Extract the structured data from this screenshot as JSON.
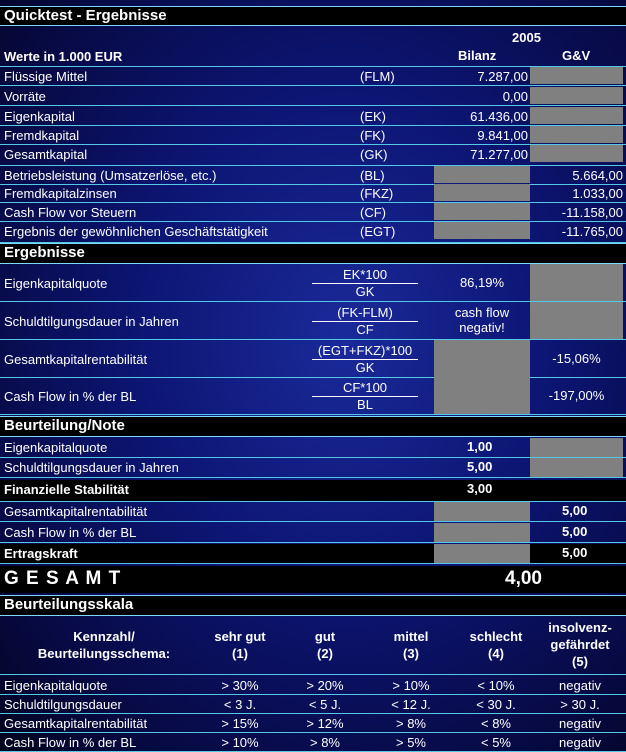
{
  "title": "Quicktest - Ergebnisse",
  "year": "2005",
  "unit_label": "Werte in 1.000 EUR",
  "col_bilanz": "Bilanz",
  "col_guv": "G&V",
  "inputs": [
    {
      "label": "Flüssige Mittel",
      "abbr": "(FLM)",
      "bilanz": "7.287,00",
      "guv": ""
    },
    {
      "label": "Vorräte",
      "abbr": "",
      "bilanz": "0,00",
      "guv": ""
    },
    {
      "label": "Eigenkapital",
      "abbr": "(EK)",
      "bilanz": "61.436,00",
      "guv": ""
    },
    {
      "label": "Fremdkapital",
      "abbr": "(FK)",
      "bilanz": "9.841,00",
      "guv": ""
    },
    {
      "label": "Gesamtkapital",
      "abbr": "(GK)",
      "bilanz": "71.277,00",
      "guv": ""
    },
    {
      "label": "Betriebsleistung (Umsatzerlöse, etc.)",
      "abbr": "(BL)",
      "bilanz": "",
      "guv": "5.664,00"
    },
    {
      "label": "Fremdkapitalzinsen",
      "abbr": "(FKZ)",
      "bilanz": "",
      "guv": "1.033,00"
    },
    {
      "label": "Cash Flow vor Steuern",
      "abbr": "(CF)",
      "bilanz": "",
      "guv": "-11.158,00"
    },
    {
      "label": "Ergebnis der gewöhnlichen Geschäftstätigkeit",
      "abbr": "(EGT)",
      "bilanz": "",
      "guv": "-11.765,00"
    }
  ],
  "ergebnisse_title": "Ergebnisse",
  "ergebnisse": [
    {
      "label": "Eigenkapitalquote",
      "num": "EK*100",
      "den": "GK",
      "bilanz": "86,19%",
      "guv": ""
    },
    {
      "label": "Schuldtilgungsdauer in Jahren",
      "num": "(FK-FLM)",
      "den": "CF",
      "bilanz": "cash flow negativ!",
      "guv": ""
    },
    {
      "label": "Gesamtkapitalrentabilität",
      "num": "(EGT+FKZ)*100",
      "den": "GK",
      "bilanz": "",
      "guv": "-15,06%"
    },
    {
      "label": "Cash Flow in % der BL",
      "num": "CF*100",
      "den": "BL",
      "bilanz": "",
      "guv": "-197,00%"
    }
  ],
  "beurteilung_title": "Beurteilung/Note",
  "beurteilung": [
    {
      "label": "Eigenkapitalquote",
      "bilanz": "1,00",
      "guv": ""
    },
    {
      "label": "Schuldtilgungsdauer in Jahren",
      "bilanz": "5,00",
      "guv": ""
    },
    {
      "label": "Finanzielle Stabilität",
      "bilanz": "3,00",
      "guv": ""
    },
    {
      "label": "Gesamtkapitalrentabilität",
      "bilanz": "",
      "guv": "5,00"
    },
    {
      "label": "Cash Flow in % der BL",
      "bilanz": "",
      "guv": "5,00"
    },
    {
      "label": "Ertragskraft",
      "bilanz": "",
      "guv": "5,00"
    }
  ],
  "gesamt_label": "G E S A M T",
  "gesamt_value": "4,00",
  "skala_title": "Beurteilungsskala",
  "skala_headers": [
    {
      "l1": "Kennzahl/",
      "l2": "Beurteilungsschema:",
      "l3": ""
    },
    {
      "l1": "sehr gut",
      "l2": "(1)",
      "l3": ""
    },
    {
      "l1": "gut",
      "l2": "(2)",
      "l3": ""
    },
    {
      "l1": "mittel",
      "l2": "(3)",
      "l3": ""
    },
    {
      "l1": "schlecht",
      "l2": "(4)",
      "l3": ""
    },
    {
      "l1": "insolvenz-",
      "l2": "gefährdet",
      "l3": "(5)"
    }
  ],
  "skala_rows": [
    {
      "label": "Eigenkapitalquote",
      "v": [
        "> 30%",
        "> 20%",
        "> 10%",
        "< 10%",
        "negativ"
      ]
    },
    {
      "label": "Schuldtilgungsdauer",
      "v": [
        "< 3 J.",
        "< 5 J.",
        "< 12 J.",
        "< 30 J.",
        "> 30 J."
      ]
    },
    {
      "label": "Gesamtkapitalrentabilität",
      "v": [
        "> 15%",
        "> 12%",
        "> 8%",
        "< 8%",
        "negativ"
      ]
    },
    {
      "label": "Cash Flow in % der BL",
      "v": [
        "> 10%",
        "> 8%",
        "> 5%",
        "< 5%",
        "negativ"
      ]
    }
  ]
}
